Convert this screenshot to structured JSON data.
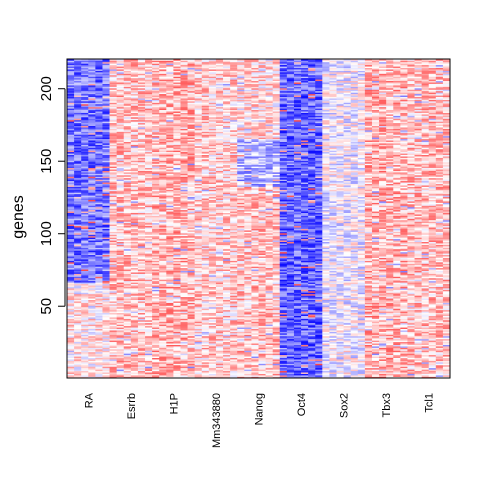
{
  "chart_data": {
    "type": "heatmap",
    "title": "",
    "xlabel": "",
    "ylabel": "genes",
    "columns": [
      "RA",
      "Esrrb",
      "H1P",
      "Mm343880",
      "Nanog",
      "Oct4",
      "Sox2",
      "Tbx3",
      "Tcl1"
    ],
    "column_positions": [
      0,
      1,
      2,
      3,
      4,
      5,
      6,
      7,
      8
    ],
    "xlim": [
      -0.5,
      8.5
    ],
    "n_rows": 220,
    "ylim": [
      0.5,
      220.5
    ],
    "y_ticks": [
      50,
      100,
      150,
      200
    ],
    "value_range": [
      -1,
      1
    ],
    "column_profile": [
      {
        "name": "RA",
        "segments": [
          [
            0.0,
            0.3,
            0.1
          ],
          [
            0.3,
            1.0,
            -0.55
          ]
        ]
      },
      {
        "name": "Esrrb",
        "segments": [
          [
            0.0,
            1.0,
            0.25
          ]
        ]
      },
      {
        "name": "H1P",
        "segments": [
          [
            0.0,
            1.0,
            0.3
          ]
        ]
      },
      {
        "name": "Mm343880",
        "segments": [
          [
            0.0,
            1.0,
            0.2
          ]
        ]
      },
      {
        "name": "Nanog",
        "segments": [
          [
            0.0,
            0.6,
            0.25
          ],
          [
            0.6,
            0.75,
            -0.3
          ],
          [
            0.75,
            1.0,
            0.15
          ]
        ]
      },
      {
        "name": "Oct4",
        "segments": [
          [
            0.0,
            1.0,
            -0.6
          ]
        ]
      },
      {
        "name": "Sox2",
        "segments": [
          [
            0.0,
            1.0,
            -0.05
          ]
        ]
      },
      {
        "name": "Tbx3",
        "segments": [
          [
            0.0,
            1.0,
            0.3
          ]
        ]
      },
      {
        "name": "Tcl1",
        "segments": [
          [
            0.0,
            1.0,
            0.25
          ]
        ]
      }
    ],
    "colors": {
      "low": "#0000ff",
      "mid": "#ffffff",
      "high": "#ff0000"
    },
    "grid": false,
    "legend": "none"
  }
}
